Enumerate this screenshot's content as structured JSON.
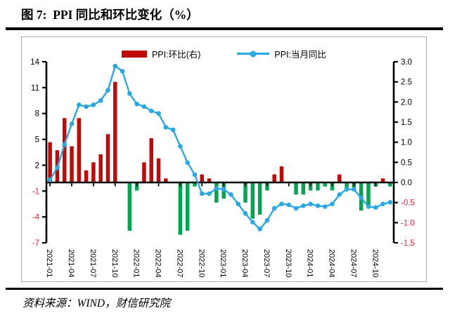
{
  "header": {
    "title": "图 7:  PPI 同比和环比变化（%）"
  },
  "footer": {
    "source": "资料来源：WIND，财信研究院"
  },
  "chart_data": {
    "type": "combo",
    "title": "PPI 同比和环比变化（%）",
    "x": [
      "2021-01",
      "2021-02",
      "2021-03",
      "2021-04",
      "2021-05",
      "2021-06",
      "2021-07",
      "2021-08",
      "2021-09",
      "2021-10",
      "2021-11",
      "2021-12",
      "2022-01",
      "2022-02",
      "2022-03",
      "2022-04",
      "2022-05",
      "2022-06",
      "2022-07",
      "2022-08",
      "2022-09",
      "2022-10",
      "2022-11",
      "2022-12",
      "2023-01",
      "2023-02",
      "2023-03",
      "2023-04",
      "2023-05",
      "2023-06",
      "2023-07",
      "2023-08",
      "2023-09",
      "2023-10",
      "2023-11",
      "2023-12",
      "2024-01",
      "2024-02",
      "2024-03",
      "2024-04",
      "2024-05",
      "2024-06",
      "2024-07",
      "2024-08",
      "2024-09",
      "2024-10",
      "2024-11",
      "2024-12"
    ],
    "series": [
      {
        "name": "PPI:环比(右)",
        "type": "bar",
        "axis": "right",
        "values": [
          1.0,
          0.8,
          1.6,
          0.9,
          1.6,
          0.3,
          0.5,
          0.7,
          1.2,
          2.5,
          0.0,
          -1.2,
          -0.2,
          0.5,
          1.1,
          0.6,
          0.1,
          0.0,
          -1.3,
          -1.2,
          -0.1,
          0.2,
          0.1,
          -0.5,
          -0.4,
          0.0,
          0.0,
          -0.5,
          -0.9,
          -0.8,
          -0.2,
          0.2,
          0.4,
          0.0,
          -0.3,
          -0.3,
          -0.2,
          -0.2,
          -0.1,
          -0.2,
          0.2,
          -0.2,
          -0.2,
          -0.7,
          -0.6,
          -0.1,
          0.1,
          -0.1
        ],
        "color_positive": "#c00a0a",
        "color_negative": "#00a550"
      },
      {
        "name": "PPI:当月同比",
        "type": "line",
        "axis": "left",
        "values": [
          0.3,
          1.7,
          4.4,
          6.8,
          9.0,
          8.8,
          9.0,
          9.5,
          10.7,
          13.5,
          12.9,
          10.3,
          9.1,
          8.8,
          8.3,
          8.0,
          6.4,
          6.1,
          4.2,
          2.3,
          0.9,
          -1.3,
          -1.3,
          -0.7,
          -0.8,
          -1.4,
          -2.5,
          -3.6,
          -4.6,
          -5.4,
          -4.4,
          -3.0,
          -2.5,
          -2.6,
          -3.0,
          -2.7,
          -2.5,
          -2.7,
          -2.8,
          -2.5,
          -1.4,
          -0.8,
          -0.8,
          -1.8,
          -2.8,
          -2.9,
          -2.5,
          -2.3
        ],
        "color": "#29a8e2"
      }
    ],
    "left_axis": {
      "min": -7,
      "max": 14,
      "ticks": [
        14,
        11,
        8,
        5,
        2,
        -1,
        -4,
        -7
      ]
    },
    "right_axis": {
      "min": -1.5,
      "max": 3.0,
      "ticks": [
        3.0,
        2.5,
        2.0,
        1.5,
        1.0,
        0.5,
        0.0,
        -0.5,
        -1.0,
        -1.5
      ]
    },
    "x_tick_every": 3,
    "grid": false,
    "legend_position": "top",
    "positive_label_color": "#000000",
    "negative_label_color": "#e8213a",
    "legend": [
      {
        "label": "PPI:环比(右)"
      },
      {
        "label": "PPI:当月同比"
      }
    ]
  }
}
